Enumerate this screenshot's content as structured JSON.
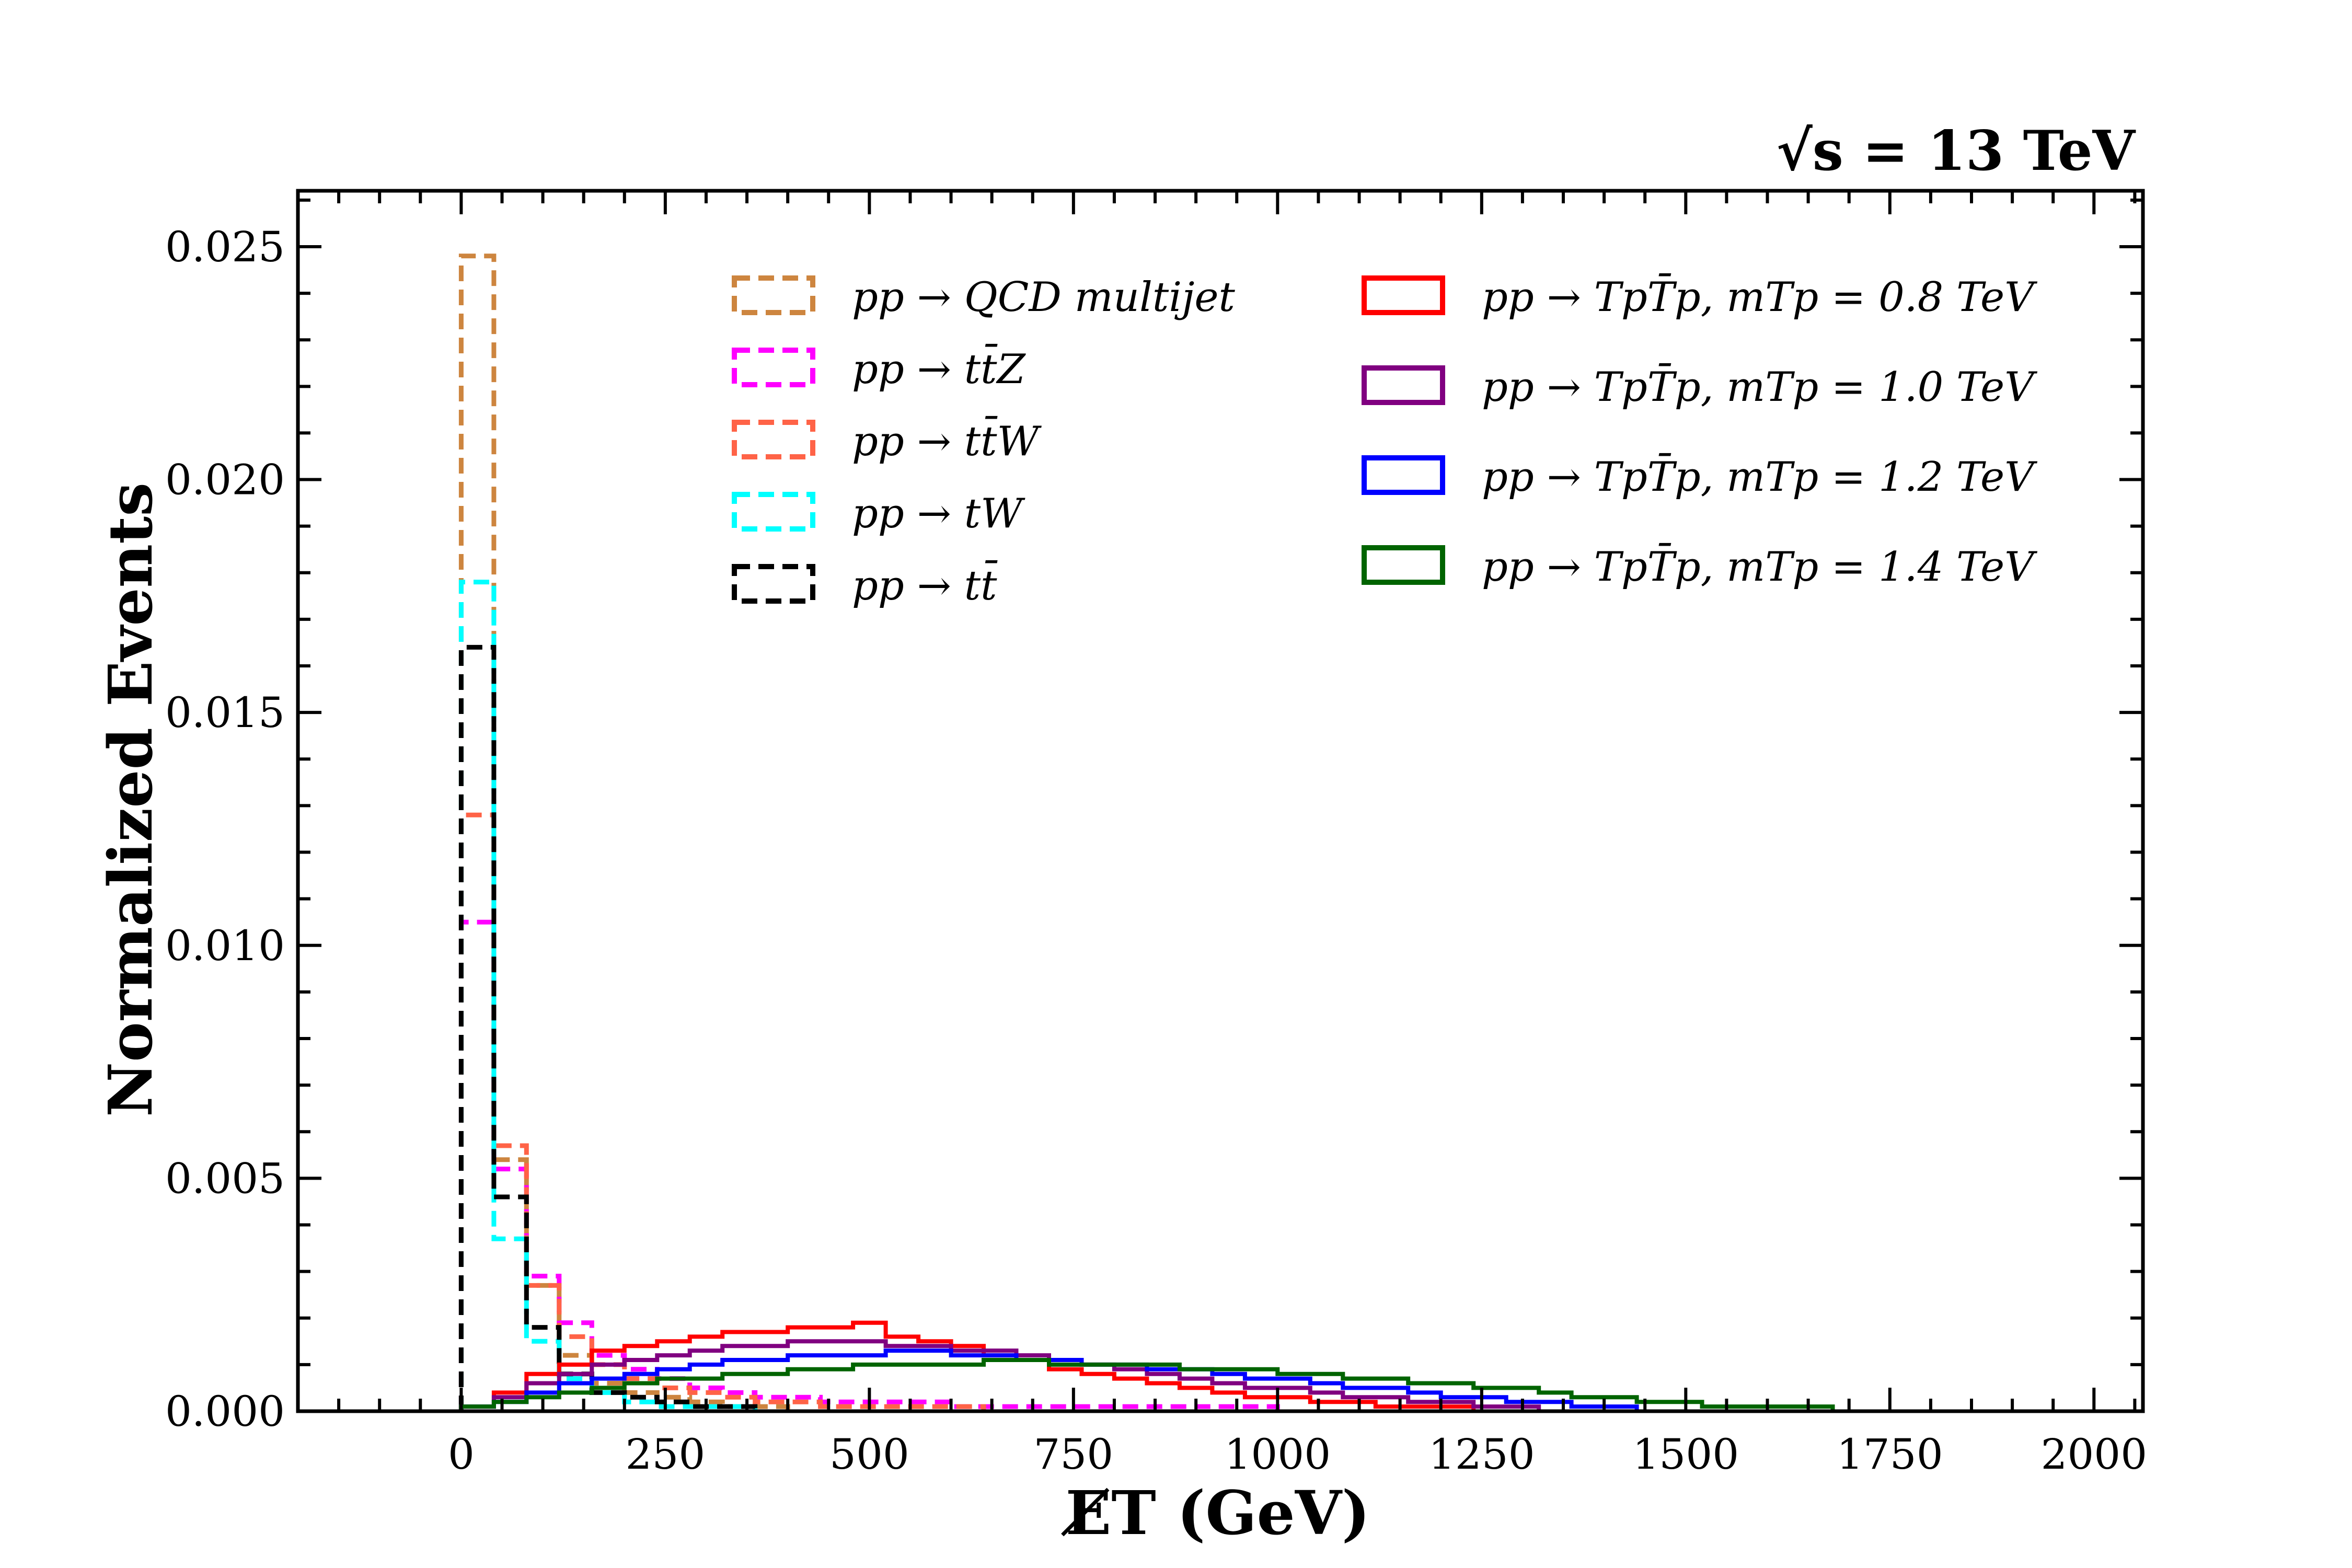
{
  "chart_data": {
    "type": "histogram-step",
    "energy_label": "√s = 13 TeV",
    "xlabel": "E̸T (GeV)",
    "ylabel": "Normalized Events",
    "xlim": [
      -200,
      2060
    ],
    "ylim": [
      0,
      0.0262
    ],
    "bin_width": 40,
    "x_start": 0,
    "x_ticks": [
      "0",
      "250",
      "500",
      "750",
      "1000",
      "1250",
      "1500",
      "1750",
      "2000"
    ],
    "y_ticks": [
      "0.000",
      "0.005",
      "0.010",
      "0.015",
      "0.020",
      "0.025"
    ],
    "legend": {
      "background": [
        {
          "text": "pp → QCD multijet",
          "color": "#cd853f"
        },
        {
          "text": "pp → tt̄Z",
          "color": "#ff00ff"
        },
        {
          "text": "pp → tt̄W",
          "color": "#ff6347"
        },
        {
          "text": "pp → tW",
          "color": "#00ffff"
        },
        {
          "text": "pp → tt̄",
          "color": "#000000"
        }
      ],
      "signal": [
        {
          "text": "pp → TpT̄p, mTp = 0.8 TeV",
          "color": "#ff0000"
        },
        {
          "text": "pp → TpT̄p, mTp = 1.0 TeV",
          "color": "#800080"
        },
        {
          "text": "pp → TpT̄p, mTp = 1.2 TeV",
          "color": "#0000ff"
        },
        {
          "text": "pp → TpT̄p, mTp = 1.4 TeV",
          "color": "#006400"
        }
      ]
    },
    "series": [
      {
        "name": "QCD multijet",
        "color": "#cd853f",
        "dashed": true,
        "values": [
          0.0248,
          0.0054,
          0.0027,
          0.0012,
          0.0006,
          0.0004,
          0.0003,
          0.0002,
          0.0001,
          0.0001
        ]
      },
      {
        "name": "ttZ",
        "color": "#ff00ff",
        "dashed": true,
        "values": [
          0.0105,
          0.0052,
          0.0029,
          0.0019,
          0.0012,
          0.0009,
          0.0007,
          0.0005,
          0.0004,
          0.0003,
          0.0003,
          0.0002,
          0.0002,
          0.0002,
          0.0002,
          0.0001,
          0.0001,
          0.0001,
          0.0001,
          0.0001,
          0.0001,
          0.0001,
          0.0001,
          0.0001,
          0.0001
        ]
      },
      {
        "name": "ttW",
        "color": "#ff6347",
        "dashed": true,
        "values": [
          0.0128,
          0.0057,
          0.0027,
          0.0016,
          0.001,
          0.0007,
          0.0005,
          0.0004,
          0.0003,
          0.0002,
          0.0002,
          0.0001,
          0.0001,
          0.0001,
          0.0001,
          0.0001
        ]
      },
      {
        "name": "tW",
        "color": "#00ffff",
        "dashed": true,
        "values": [
          0.0178,
          0.0037,
          0.0015,
          0.0007,
          0.0004,
          0.0002,
          0.0001,
          0.0001,
          0.0001
        ]
      },
      {
        "name": "tt",
        "color": "#000000",
        "dashed": true,
        "values": [
          0.0164,
          0.0046,
          0.0018,
          0.0008,
          0.0004,
          0.0003,
          0.0002,
          0.0001,
          0.0001
        ]
      },
      {
        "name": "Tp 0.8 TeV",
        "color": "#ff0000",
        "dashed": false,
        "values": [
          0.0001,
          0.0004,
          0.0008,
          0.001,
          0.0013,
          0.0014,
          0.0015,
          0.0016,
          0.0017,
          0.0017,
          0.0018,
          0.0018,
          0.0019,
          0.0016,
          0.0015,
          0.0014,
          0.0012,
          0.0011,
          0.0009,
          0.0008,
          0.0007,
          0.0006,
          0.0005,
          0.0004,
          0.0003,
          0.0003,
          0.0002,
          0.0002,
          0.0001,
          0.0001,
          0.0001
        ]
      },
      {
        "name": "Tp 1.0 TeV",
        "color": "#800080",
        "dashed": false,
        "values": [
          0.0001,
          0.0003,
          0.0006,
          0.0008,
          0.001,
          0.0011,
          0.0012,
          0.0013,
          0.0014,
          0.0014,
          0.0015,
          0.0015,
          0.0015,
          0.0014,
          0.0014,
          0.0013,
          0.0013,
          0.0012,
          0.0011,
          0.001,
          0.0009,
          0.0008,
          0.0007,
          0.0006,
          0.0005,
          0.0005,
          0.0004,
          0.0003,
          0.0003,
          0.0002,
          0.0002,
          0.0001,
          0.0001
        ]
      },
      {
        "name": "Tp 1.2 TeV",
        "color": "#0000ff",
        "dashed": false,
        "values": [
          0.0001,
          0.0002,
          0.0004,
          0.0006,
          0.0007,
          0.0008,
          0.0009,
          0.001,
          0.0011,
          0.0011,
          0.0012,
          0.0012,
          0.0012,
          0.0013,
          0.0013,
          0.0012,
          0.0012,
          0.0011,
          0.0011,
          0.001,
          0.001,
          0.0009,
          0.0009,
          0.0008,
          0.0007,
          0.0007,
          0.0006,
          0.0005,
          0.0005,
          0.0004,
          0.0003,
          0.0003,
          0.0002,
          0.0002,
          0.0001,
          0.0001
        ]
      },
      {
        "name": "Tp 1.4 TeV",
        "color": "#006400",
        "dashed": false,
        "values": [
          0.0001,
          0.0002,
          0.0003,
          0.0004,
          0.0005,
          0.0006,
          0.0007,
          0.0007,
          0.0008,
          0.0008,
          0.0009,
          0.0009,
          0.001,
          0.001,
          0.001,
          0.001,
          0.0011,
          0.0011,
          0.001,
          0.001,
          0.001,
          0.001,
          0.0009,
          0.0009,
          0.0009,
          0.0008,
          0.0008,
          0.0007,
          0.0007,
          0.0006,
          0.0006,
          0.0005,
          0.0005,
          0.0004,
          0.0003,
          0.0003,
          0.0002,
          0.0002,
          0.0001,
          0.0001,
          0.0001,
          0.0001
        ]
      }
    ]
  }
}
